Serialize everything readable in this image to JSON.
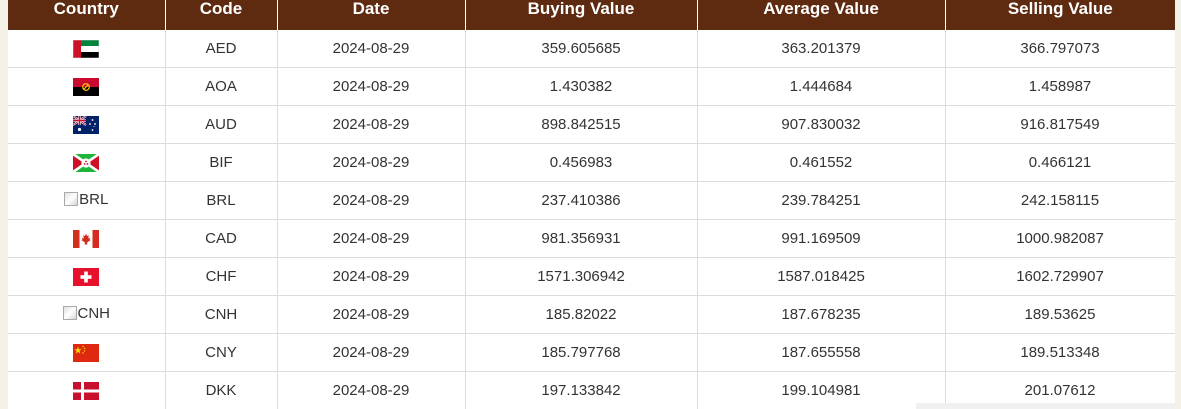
{
  "headers": {
    "country": "Country",
    "code": "Code",
    "date": "Date",
    "buying": "Buying Value",
    "average": "Average Value",
    "selling": "Selling Value"
  },
  "rows": [
    {
      "flag": "uae-flag-icon",
      "flag_alt": "",
      "code": "AED",
      "date": "2024-08-29",
      "buying": "359.605685",
      "average": "363.201379",
      "selling": "366.797073"
    },
    {
      "flag": "angola-flag-icon",
      "flag_alt": "",
      "code": "AOA",
      "date": "2024-08-29",
      "buying": "1.430382",
      "average": "1.444684",
      "selling": "1.458987"
    },
    {
      "flag": "australia-flag-icon",
      "flag_alt": "",
      "code": "AUD",
      "date": "2024-08-29",
      "buying": "898.842515",
      "average": "907.830032",
      "selling": "916.817549"
    },
    {
      "flag": "burundi-flag-icon",
      "flag_alt": "",
      "code": "BIF",
      "date": "2024-08-29",
      "buying": "0.456983",
      "average": "0.461552",
      "selling": "0.466121"
    },
    {
      "flag": "broken-image-icon",
      "flag_alt": "BRL",
      "code": "BRL",
      "date": "2024-08-29",
      "buying": "237.410386",
      "average": "239.784251",
      "selling": "242.158115"
    },
    {
      "flag": "canada-flag-icon",
      "flag_alt": "",
      "code": "CAD",
      "date": "2024-08-29",
      "buying": "981.356931",
      "average": "991.169509",
      "selling": "1000.982087"
    },
    {
      "flag": "switzerland-flag-icon",
      "flag_alt": "",
      "code": "CHF",
      "date": "2024-08-29",
      "buying": "1571.306942",
      "average": "1587.018425",
      "selling": "1602.729907"
    },
    {
      "flag": "broken-image-icon",
      "flag_alt": "CNH",
      "code": "CNH",
      "date": "2024-08-29",
      "buying": "185.82022",
      "average": "187.678235",
      "selling": "189.53625"
    },
    {
      "flag": "china-flag-icon",
      "flag_alt": "",
      "code": "CNY",
      "date": "2024-08-29",
      "buying": "185.797768",
      "average": "187.655558",
      "selling": "189.513348"
    },
    {
      "flag": "denmark-flag-icon",
      "flag_alt": "",
      "code": "DKK",
      "date": "2024-08-29",
      "buying": "197.133842",
      "average": "199.104981",
      "selling": "201.07612"
    }
  ],
  "colors": {
    "header_bg": "#5e2a10",
    "header_text": "#ffffff",
    "cell_text": "#333333",
    "grid": "#dcdcdc"
  }
}
